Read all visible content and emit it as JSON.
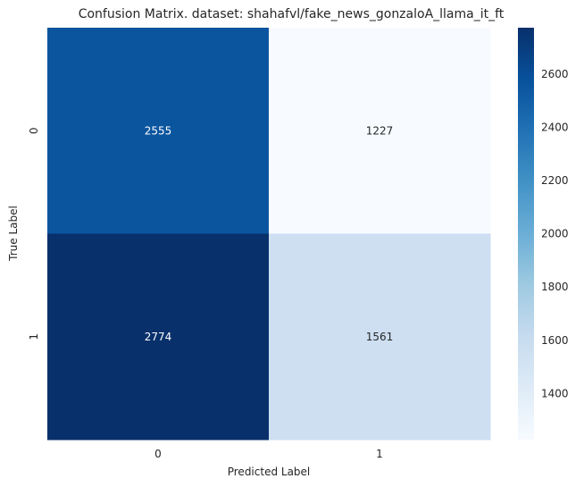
{
  "chart_data": {
    "type": "heatmap",
    "title": "Confusion Matrix. dataset: shahafvl/fake_news_gonzaloA_llama_it_ft",
    "xlabel": "Predicted Label",
    "ylabel": "True Label",
    "x_categories": [
      "0",
      "1"
    ],
    "y_categories": [
      "0",
      "1"
    ],
    "values": [
      [
        2555,
        1227
      ],
      [
        2774,
        1561
      ]
    ],
    "colormap": "Blues",
    "colorbar": {
      "min": 1227,
      "max": 2774,
      "ticks": [
        1400,
        1600,
        1800,
        2000,
        2200,
        2400,
        2600
      ]
    },
    "annotations": true,
    "grid": false
  }
}
